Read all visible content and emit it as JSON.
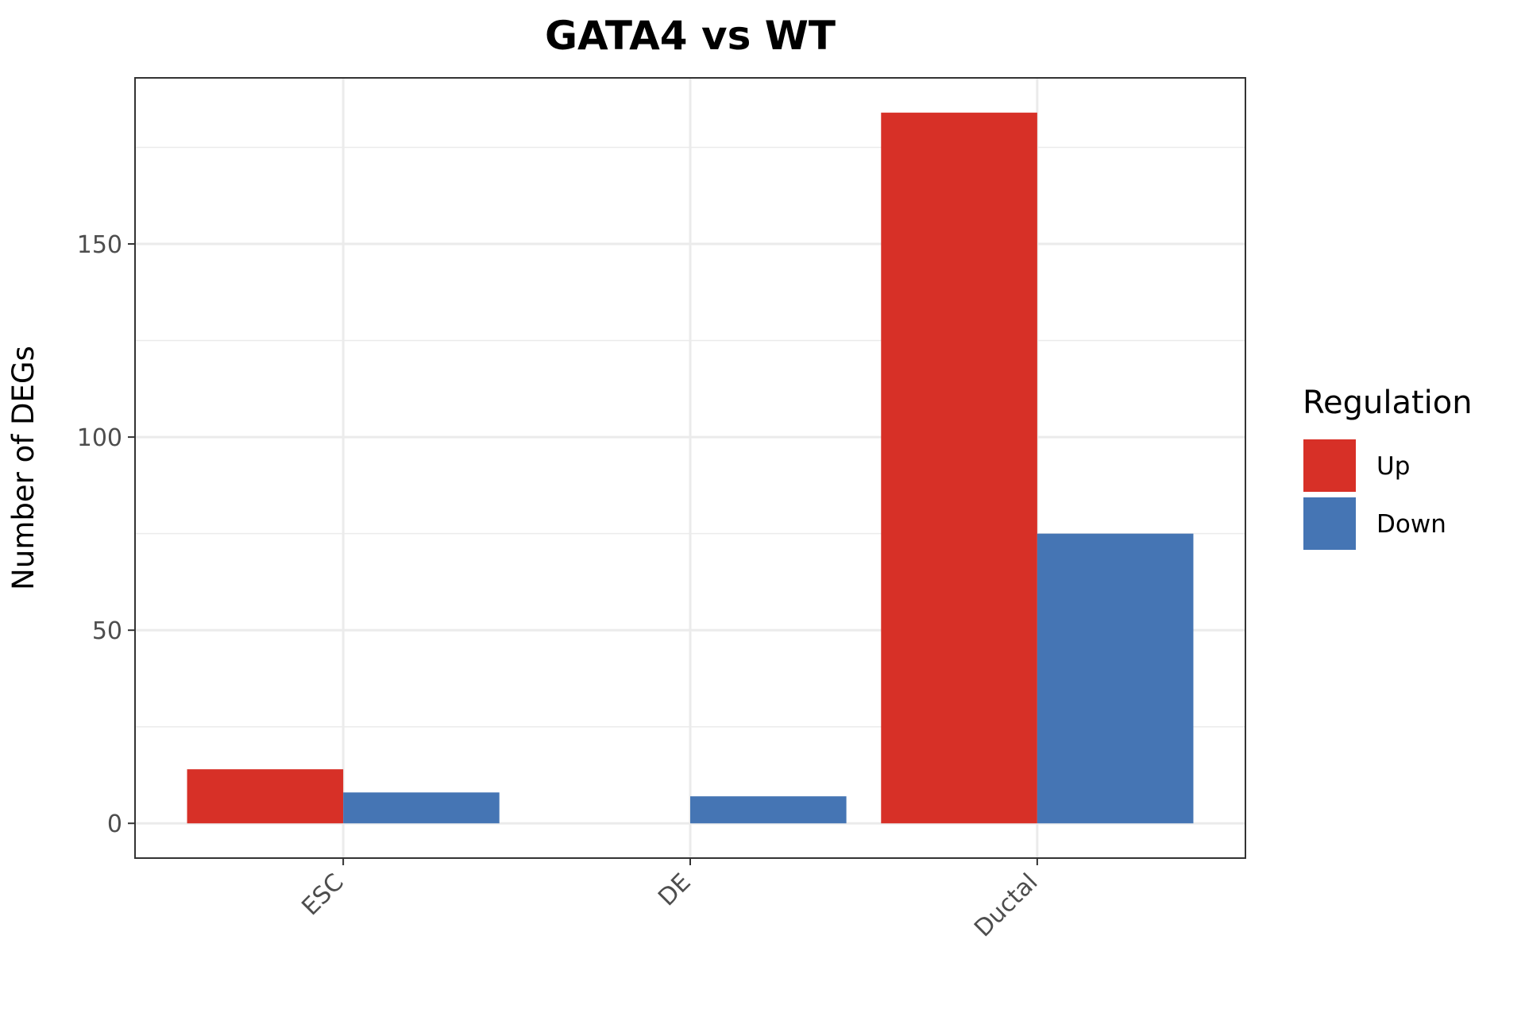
{
  "chart_data": {
    "type": "bar",
    "title": "GATA4 vs WT",
    "xlabel": "",
    "ylabel": "Number of DEGs",
    "categories": [
      "ESC",
      "DE",
      "Ductal"
    ],
    "series": [
      {
        "name": "Up",
        "values": [
          14,
          0,
          184
        ],
        "color": "#d73027"
      },
      {
        "name": "Down",
        "values": [
          8,
          7,
          75
        ],
        "color": "#4575b4"
      }
    ],
    "ylim": [
      -9,
      193
    ],
    "yticks": [
      0,
      50,
      100,
      150
    ],
    "ytick_labels": [
      "0",
      "50",
      "100",
      "150"
    ],
    "grid": true,
    "legend": {
      "title": "Regulation",
      "position": "right"
    }
  }
}
